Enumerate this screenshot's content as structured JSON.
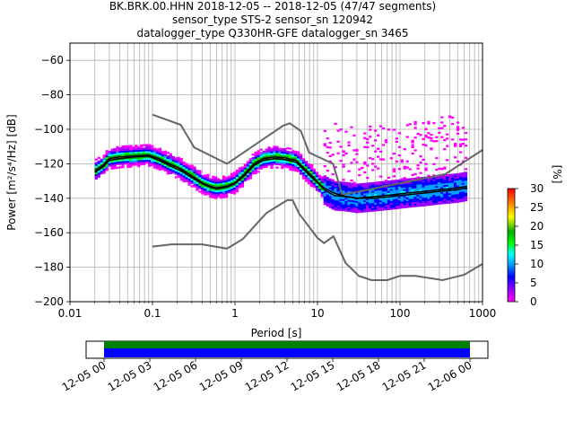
{
  "chart_data": {
    "type": "heatmap",
    "title_lines": [
      "BK.BRK.00.HHN   2018-12-05 -- 2018-12-05  (47/47 segments)",
      "sensor_type STS-2 sensor_sn 120942",
      "datalogger_type Q330HR-GFE datalogger_sn 3465"
    ],
    "xlabel": "Period [s]",
    "ylabel": "Power [m²/s⁴/Hz] [dB]",
    "xscale": "log",
    "xlim": [
      0.01,
      1000
    ],
    "ylim": [
      -200,
      -50
    ],
    "x_ticks": [
      {
        "v": 0.01,
        "label": "0.01"
      },
      {
        "v": 0.1,
        "label": "0.1"
      },
      {
        "v": 1,
        "label": "1"
      },
      {
        "v": 10,
        "label": "10"
      },
      {
        "v": 100,
        "label": "100"
      },
      {
        "v": 1000,
        "label": "1000"
      }
    ],
    "y_ticks": [
      {
        "v": -60,
        "label": "−60"
      },
      {
        "v": -80,
        "label": "−80"
      },
      {
        "v": -100,
        "label": "−100"
      },
      {
        "v": -120,
        "label": "−120"
      },
      {
        "v": -140,
        "label": "−140"
      },
      {
        "v": -160,
        "label": "−160"
      },
      {
        "v": -180,
        "label": "−180"
      },
      {
        "v": -200,
        "label": "−200"
      }
    ],
    "grid": true,
    "colorbar": {
      "label": "[%]",
      "range": [
        0,
        30
      ],
      "ticks": [
        {
          "v": 0,
          "label": "0"
        },
        {
          "v": 5,
          "label": "5"
        },
        {
          "v": 10,
          "label": "10"
        },
        {
          "v": 15,
          "label": "15"
        },
        {
          "v": 20,
          "label": "20"
        },
        {
          "v": 25,
          "label": "25"
        },
        {
          "v": 30,
          "label": "30"
        }
      ]
    },
    "new_high_noise_model": [
      [
        0.1,
        -91.5
      ],
      [
        0.22,
        -97.4
      ],
      [
        0.32,
        -110.5
      ],
      [
        0.8,
        -120
      ],
      [
        3.8,
        -98
      ],
      [
        4.6,
        -96.5
      ],
      [
        6.3,
        -101
      ],
      [
        7.9,
        -113.5
      ],
      [
        15.4,
        -120
      ],
      [
        20,
        -138
      ],
      [
        354.8,
        -126
      ],
      [
        1000,
        -112
      ]
    ],
    "new_low_noise_model": [
      [
        0.1,
        -168
      ],
      [
        0.17,
        -166.7
      ],
      [
        0.4,
        -166.7
      ],
      [
        0.8,
        -169.2
      ],
      [
        1.24,
        -163.7
      ],
      [
        2.4,
        -148.6
      ],
      [
        4.3,
        -141.1
      ],
      [
        5,
        -141.1
      ],
      [
        6,
        -149
      ],
      [
        10,
        -163
      ],
      [
        12,
        -166
      ],
      [
        15.6,
        -162.1
      ],
      [
        21.9,
        -177.5
      ],
      [
        31.6,
        -185
      ],
      [
        45,
        -187.5
      ],
      [
        70,
        -187.5
      ],
      [
        100,
        -185
      ],
      [
        154,
        -185
      ],
      [
        328,
        -187.5
      ],
      [
        600,
        -184.4
      ],
      [
        1000,
        -178
      ]
    ],
    "mean_psd": [
      [
        0.02,
        -124
      ],
      [
        0.025,
        -121
      ],
      [
        0.03,
        -117
      ],
      [
        0.04,
        -116
      ],
      [
        0.06,
        -115.5
      ],
      [
        0.09,
        -115
      ],
      [
        0.12,
        -117
      ],
      [
        0.16,
        -120
      ],
      [
        0.22,
        -123
      ],
      [
        0.3,
        -127
      ],
      [
        0.4,
        -131
      ],
      [
        0.5,
        -133
      ],
      [
        0.6,
        -134
      ],
      [
        0.8,
        -133
      ],
      [
        1,
        -131
      ],
      [
        1.3,
        -126
      ],
      [
        1.7,
        -120
      ],
      [
        2.2,
        -117
      ],
      [
        3,
        -116
      ],
      [
        4,
        -116.5
      ],
      [
        5.5,
        -118
      ],
      [
        7,
        -123
      ],
      [
        9,
        -128
      ],
      [
        12,
        -135
      ],
      [
        16,
        -138.5
      ],
      [
        22,
        -139
      ],
      [
        30,
        -140
      ],
      [
        50,
        -139
      ],
      [
        80,
        -138
      ],
      [
        120,
        -137
      ],
      [
        200,
        -136
      ],
      [
        300,
        -135
      ],
      [
        500,
        -134
      ],
      [
        650,
        -133
      ]
    ],
    "mode_psd": [
      [
        0.02,
        -125
      ],
      [
        0.025,
        -122
      ],
      [
        0.03,
        -118
      ],
      [
        0.04,
        -117
      ],
      [
        0.06,
        -116
      ],
      [
        0.09,
        -115.5
      ],
      [
        0.12,
        -118
      ],
      [
        0.16,
        -121
      ],
      [
        0.22,
        -124
      ],
      [
        0.3,
        -128
      ],
      [
        0.4,
        -131.5
      ],
      [
        0.5,
        -133.5
      ],
      [
        0.6,
        -134.5
      ],
      [
        0.8,
        -133.5
      ],
      [
        1,
        -131.5
      ],
      [
        1.3,
        -127
      ],
      [
        1.7,
        -121
      ],
      [
        2.2,
        -118
      ],
      [
        3,
        -117
      ],
      [
        4,
        -117.5
      ],
      [
        5.5,
        -119
      ],
      [
        7,
        -124
      ],
      [
        9,
        -129
      ],
      [
        12,
        -134
      ],
      [
        16,
        -137
      ],
      [
        22,
        -139
      ],
      [
        30,
        -140
      ],
      [
        50,
        -140
      ],
      [
        80,
        -139
      ],
      [
        120,
        -138
      ],
      [
        200,
        -137
      ],
      [
        300,
        -136
      ],
      [
        500,
        -135
      ],
      [
        650,
        -134
      ]
    ],
    "time_axis": {
      "tick_labels": [
        "12-05 00",
        "12-05 03",
        "12-05 06",
        "12-05 09",
        "12-05 12",
        "12-05 15",
        "12-05 18",
        "12-05 21",
        "12-06 00"
      ],
      "coverage_start_hour": 0,
      "coverage_end_hour": 24,
      "span_hours": [
        0,
        24
      ]
    }
  }
}
